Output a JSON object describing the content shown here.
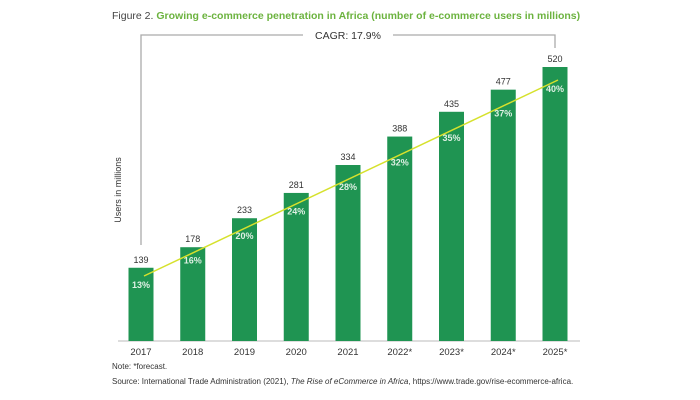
{
  "figure_label": "Figure 2.",
  "chart_data": {
    "type": "bar",
    "title": "Growing e-commerce penetration in Africa (number of e-commerce users in millions)",
    "ylabel": "Users in millions",
    "xlabel": "",
    "categories": [
      "2017",
      "2018",
      "2019",
      "2020",
      "2021",
      "2022*",
      "2023*",
      "2024*",
      "2025*"
    ],
    "values": [
      139,
      178,
      233,
      281,
      334,
      388,
      435,
      477,
      520
    ],
    "penetration_labels": [
      "13%",
      "16%",
      "20%",
      "24%",
      "28%",
      "32%",
      "35%",
      "37%",
      "40%"
    ],
    "annotation": "CAGR: 17.9%",
    "ylim": [
      0,
      520
    ],
    "grid": false,
    "trend_line": "linear",
    "colors": {
      "bar": "#1f9452",
      "trend": "#d6e12c",
      "title_accent": "#6cb33f"
    }
  },
  "note": "Note: *forecast.",
  "source": {
    "prefix": "Source: International Trade Administration (2021), ",
    "italic": "The Rise of eCommerce in Africa",
    "suffix": ", https://www.trade.gov/rise-ecommerce-africa."
  }
}
